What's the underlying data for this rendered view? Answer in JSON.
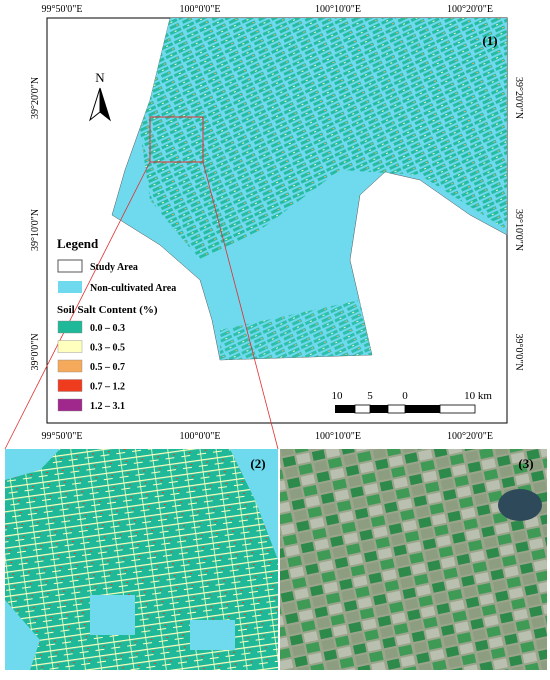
{
  "map": {
    "panel_label": "(1)",
    "north": "N",
    "lon_labels_top": [
      "99°50'0\"E",
      "100°0'0\"E",
      "100°10'0\"E",
      "100°20'0\"E"
    ],
    "lon_labels_bottom": [
      "99°50'0\"E",
      "100°0'0\"E",
      "100°10'0\"E",
      "100°20'0\"E"
    ],
    "lat_labels_left": [
      "39°20'0\"N",
      "39°10'0\"N",
      "39°0'0\"N"
    ],
    "lat_labels_right": [
      "39°20'0\"N",
      "39°10'0\"N",
      "39°0'0\"N"
    ],
    "scale_labels": [
      "10",
      "5",
      "0",
      "10 km"
    ]
  },
  "legend": {
    "title": "Legend",
    "study_area": "Study Area",
    "non_cultivated": "Non-cultivated Area",
    "salt_title": "Soil Salt Content (%)",
    "classes": [
      {
        "label": "0.0 – 0.3",
        "color": "#1fb99a"
      },
      {
        "label": "0.3 – 0.5",
        "color": "#ffffbe"
      },
      {
        "label": "0.5 – 0.7",
        "color": "#f5a95a"
      },
      {
        "label": "0.7 – 1.2",
        "color": "#f03c1e"
      },
      {
        "label": "1.2 – 3.1",
        "color": "#a0288c"
      }
    ]
  },
  "panels": {
    "zoom_label": "(2)",
    "satellite_label": "(3)"
  }
}
